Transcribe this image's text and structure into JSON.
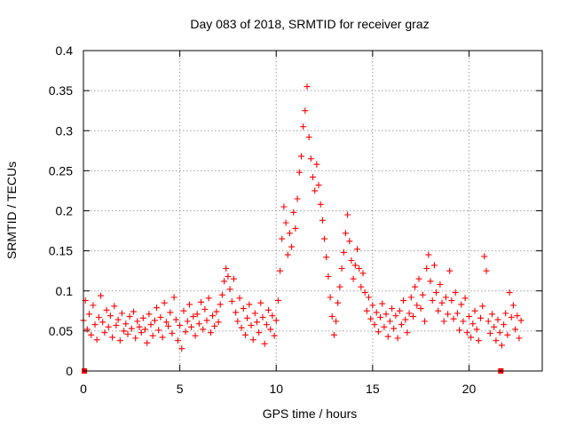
{
  "chart_data": {
    "type": "scatter",
    "title": "Day 083 of 2018, SRMTID for receiver graz",
    "xlabel": "GPS time / hours",
    "ylabel": "SRMTID / TECUs",
    "xlim": [
      0,
      23.8
    ],
    "ylim": [
      0,
      0.4
    ],
    "x_ticks": [
      0,
      5,
      10,
      15,
      20
    ],
    "x_tick_labels": [
      "0",
      "5",
      "10",
      "15",
      "20"
    ],
    "y_ticks": [
      0,
      0.05,
      0.1,
      0.15,
      0.2,
      0.25,
      0.3,
      0.35,
      0.4
    ],
    "y_tick_labels": [
      "0",
      "0.05",
      "0.1",
      "0.15",
      "0.2",
      "0.25",
      "0.3",
      "0.35",
      "0.4"
    ],
    "grid": true,
    "legend": "none",
    "marker": "+",
    "color": "#ff0000",
    "series": [
      {
        "name": "SRMTID",
        "points": [
          [
            0.0,
            0.063
          ],
          [
            0.1,
            0.088
          ],
          [
            0.2,
            0.052
          ],
          [
            0.3,
            0.071
          ],
          [
            0.4,
            0.045
          ],
          [
            0.5,
            0.082
          ],
          [
            0.6,
            0.058
          ],
          [
            0.7,
            0.039
          ],
          [
            0.8,
            0.067
          ],
          [
            0.9,
            0.094
          ],
          [
            1.0,
            0.061
          ],
          [
            1.1,
            0.048
          ],
          [
            1.2,
            0.076
          ],
          [
            1.3,
            0.055
          ],
          [
            1.4,
            0.069
          ],
          [
            1.5,
            0.042
          ],
          [
            1.6,
            0.081
          ],
          [
            1.7,
            0.057
          ],
          [
            1.8,
            0.064
          ],
          [
            1.9,
            0.038
          ],
          [
            2.0,
            0.072
          ],
          [
            2.1,
            0.05
          ],
          [
            2.2,
            0.059
          ],
          [
            2.3,
            0.046
          ],
          [
            2.4,
            0.068
          ],
          [
            2.5,
            0.053
          ],
          [
            2.6,
            0.074
          ],
          [
            2.7,
            0.041
          ],
          [
            2.8,
            0.062
          ],
          [
            2.9,
            0.055
          ],
          [
            3.0,
            0.048
          ],
          [
            3.1,
            0.066
          ],
          [
            3.2,
            0.052
          ],
          [
            3.3,
            0.035
          ],
          [
            3.4,
            0.071
          ],
          [
            3.5,
            0.058
          ],
          [
            3.6,
            0.044
          ],
          [
            3.7,
            0.063
          ],
          [
            3.8,
            0.079
          ],
          [
            3.9,
            0.051
          ],
          [
            4.0,
            0.067
          ],
          [
            4.1,
            0.042
          ],
          [
            4.2,
            0.085
          ],
          [
            4.3,
            0.061
          ],
          [
            4.4,
            0.056
          ],
          [
            4.5,
            0.073
          ],
          [
            4.6,
            0.047
          ],
          [
            4.7,
            0.092
          ],
          [
            4.8,
            0.064
          ],
          [
            4.9,
            0.038
          ],
          [
            5.0,
            0.057
          ],
          [
            5.1,
            0.028
          ],
          [
            5.2,
            0.075
          ],
          [
            5.3,
            0.049
          ],
          [
            5.4,
            0.062
          ],
          [
            5.5,
            0.083
          ],
          [
            5.6,
            0.055
          ],
          [
            5.7,
            0.068
          ],
          [
            5.8,
            0.044
          ],
          [
            5.9,
            0.071
          ],
          [
            6.0,
            0.059
          ],
          [
            6.1,
            0.086
          ],
          [
            6.2,
            0.052
          ],
          [
            6.3,
            0.077
          ],
          [
            6.4,
            0.063
          ],
          [
            6.5,
            0.091
          ],
          [
            6.6,
            0.048
          ],
          [
            6.7,
            0.069
          ],
          [
            6.8,
            0.056
          ],
          [
            6.9,
            0.074
          ],
          [
            7.0,
            0.061
          ],
          [
            7.1,
            0.083
          ],
          [
            7.2,
            0.095
          ],
          [
            7.3,
            0.112
          ],
          [
            7.4,
            0.128
          ],
          [
            7.5,
            0.118
          ],
          [
            7.6,
            0.102
          ],
          [
            7.7,
            0.087
          ],
          [
            7.8,
            0.115
          ],
          [
            7.9,
            0.073
          ],
          [
            8.0,
            0.062
          ],
          [
            8.1,
            0.091
          ],
          [
            8.2,
            0.054
          ],
          [
            8.3,
            0.078
          ],
          [
            8.4,
            0.045
          ],
          [
            8.5,
            0.066
          ],
          [
            8.6,
            0.083
          ],
          [
            8.7,
            0.057
          ],
          [
            8.8,
            0.039
          ],
          [
            8.9,
            0.072
          ],
          [
            9.0,
            0.061
          ],
          [
            9.1,
            0.048
          ],
          [
            9.2,
            0.085
          ],
          [
            9.3,
            0.067
          ],
          [
            9.4,
            0.034
          ],
          [
            9.5,
            0.058
          ],
          [
            9.6,
            0.076
          ],
          [
            9.7,
            0.052
          ],
          [
            9.8,
            0.069
          ],
          [
            9.9,
            0.044
          ],
          [
            10.0,
            0.063
          ],
          [
            10.1,
            0.088
          ],
          [
            10.2,
            0.125
          ],
          [
            10.3,
            0.165
          ],
          [
            10.4,
            0.205
          ],
          [
            10.5,
            0.185
          ],
          [
            10.6,
            0.145
          ],
          [
            10.7,
            0.172
          ],
          [
            10.8,
            0.155
          ],
          [
            10.9,
            0.198
          ],
          [
            11.0,
            0.178
          ],
          [
            11.1,
            0.215
          ],
          [
            11.2,
            0.248
          ],
          [
            11.3,
            0.268
          ],
          [
            11.4,
            0.305
          ],
          [
            11.5,
            0.325
          ],
          [
            11.6,
            0.355
          ],
          [
            11.7,
            0.292
          ],
          [
            11.8,
            0.265
          ],
          [
            11.9,
            0.242
          ],
          [
            12.0,
            0.225
          ],
          [
            12.1,
            0.258
          ],
          [
            12.2,
            0.232
          ],
          [
            12.3,
            0.208
          ],
          [
            12.4,
            0.188
          ],
          [
            12.5,
            0.165
          ],
          [
            12.6,
            0.142
          ],
          [
            12.7,
            0.118
          ],
          [
            12.8,
            0.092
          ],
          [
            12.9,
            0.068
          ],
          [
            13.0,
            0.045
          ],
          [
            13.1,
            0.062
          ],
          [
            13.2,
            0.085
          ],
          [
            13.3,
            0.105
          ],
          [
            13.4,
            0.128
          ],
          [
            13.5,
            0.148
          ],
          [
            13.6,
            0.172
          ],
          [
            13.7,
            0.195
          ],
          [
            13.8,
            0.162
          ],
          [
            13.9,
            0.138
          ],
          [
            14.0,
            0.115
          ],
          [
            14.1,
            0.132
          ],
          [
            14.2,
            0.152
          ],
          [
            14.3,
            0.128
          ],
          [
            14.4,
            0.105
          ],
          [
            14.5,
            0.122
          ],
          [
            14.6,
            0.098
          ],
          [
            14.7,
            0.075
          ],
          [
            14.8,
            0.092
          ],
          [
            14.9,
            0.065
          ],
          [
            15.0,
            0.082
          ],
          [
            15.1,
            0.058
          ],
          [
            15.2,
            0.073
          ],
          [
            15.3,
            0.049
          ],
          [
            15.4,
            0.067
          ],
          [
            15.5,
            0.084
          ],
          [
            15.6,
            0.055
          ],
          [
            15.7,
            0.071
          ],
          [
            15.8,
            0.043
          ],
          [
            15.9,
            0.062
          ],
          [
            16.0,
            0.078
          ],
          [
            16.1,
            0.053
          ],
          [
            16.2,
            0.069
          ],
          [
            16.3,
            0.041
          ],
          [
            16.4,
            0.075
          ],
          [
            16.5,
            0.058
          ],
          [
            16.6,
            0.088
          ],
          [
            16.7,
            0.064
          ],
          [
            16.8,
            0.048
          ],
          [
            16.9,
            0.072
          ],
          [
            17.0,
            0.092
          ],
          [
            17.1,
            0.068
          ],
          [
            17.2,
            0.105
          ],
          [
            17.3,
            0.082
          ],
          [
            17.4,
            0.115
          ],
          [
            17.5,
            0.078
          ],
          [
            17.6,
            0.095
          ],
          [
            17.7,
            0.062
          ],
          [
            17.8,
            0.128
          ],
          [
            17.9,
            0.145
          ],
          [
            18.0,
            0.112
          ],
          [
            18.1,
            0.088
          ],
          [
            18.2,
            0.132
          ],
          [
            18.3,
            0.098
          ],
          [
            18.4,
            0.075
          ],
          [
            18.5,
            0.108
          ],
          [
            18.6,
            0.085
          ],
          [
            18.7,
            0.062
          ],
          [
            18.8,
            0.092
          ],
          [
            18.9,
            0.071
          ],
          [
            19.0,
            0.125
          ],
          [
            19.1,
            0.088
          ],
          [
            19.2,
            0.065
          ],
          [
            19.3,
            0.098
          ],
          [
            19.4,
            0.072
          ],
          [
            19.5,
            0.051
          ],
          [
            19.6,
            0.083
          ],
          [
            19.7,
            0.062
          ],
          [
            19.8,
            0.091
          ],
          [
            19.9,
            0.048
          ],
          [
            20.0,
            0.068
          ],
          [
            20.1,
            0.042
          ],
          [
            20.2,
            0.059
          ],
          [
            20.3,
            0.075
          ],
          [
            20.4,
            0.052
          ],
          [
            20.5,
            0.038
          ],
          [
            20.6,
            0.066
          ],
          [
            20.7,
            0.081
          ],
          [
            20.8,
            0.143
          ],
          [
            20.9,
            0.125
          ],
          [
            21.0,
            0.062
          ],
          [
            21.1,
            0.047
          ],
          [
            21.2,
            0.071
          ],
          [
            21.3,
            0.055
          ],
          [
            21.4,
            0.038
          ],
          [
            21.5,
            0.064
          ],
          [
            21.6,
            0.048
          ],
          [
            21.7,
            0.032
          ],
          [
            21.8,
            0.058
          ],
          [
            21.9,
            0.072
          ],
          [
            22.0,
            0.045
          ],
          [
            22.1,
            0.098
          ],
          [
            22.2,
            0.067
          ],
          [
            22.3,
            0.082
          ],
          [
            22.4,
            0.052
          ],
          [
            22.5,
            0.069
          ],
          [
            22.6,
            0.041
          ],
          [
            22.7,
            0.063
          ]
        ]
      }
    ],
    "baseline_markers": [
      0.05,
      21.65
    ]
  }
}
